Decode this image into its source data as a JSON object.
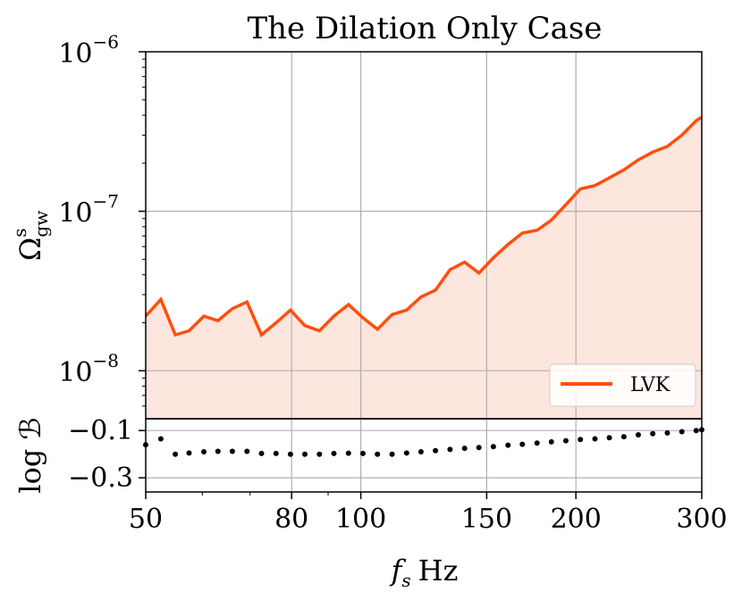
{
  "chart_data": [
    {
      "type": "area",
      "title": "The Dilation Only Case",
      "ylabel": "Ω^s_gw",
      "ylabel_base": "Ω",
      "ylabel_sup": "s",
      "ylabel_sub": "gw",
      "yscale": "log",
      "ylim": [
        5e-09,
        1e-06
      ],
      "xscale": "log",
      "xlim": [
        50,
        300
      ],
      "y_ticks": [
        {
          "value": 1e-06,
          "base": "10",
          "exp": "−6"
        },
        {
          "value": 1e-07,
          "base": "10",
          "exp": "−7"
        },
        {
          "value": 1e-08,
          "base": "10",
          "exp": "−8"
        }
      ],
      "grid": true,
      "legend": {
        "position": "lower-right",
        "entries": [
          "LVK"
        ]
      },
      "colors": {
        "line": "#ff4f0d",
        "fill": "#fde6de"
      },
      "series": [
        {
          "name": "LVK",
          "x": [
            50,
            52.5,
            55,
            57.5,
            60.3,
            63.1,
            66.1,
            69.3,
            72.6,
            76.1,
            79.7,
            83.5,
            87.5,
            91.7,
            96.1,
            100.7,
            105.5,
            110.6,
            115.9,
            121.4,
            127.2,
            133.3,
            139.7,
            146.3,
            153.3,
            160.7,
            168.3,
            176.4,
            184.8,
            193.6,
            202.9,
            212.6,
            222.7,
            233.4,
            244.5,
            256.2,
            268.5,
            281.3,
            294.7,
            300
          ],
          "values": [
            2.2e-08,
            2.8e-08,
            1.68e-08,
            1.78e-08,
            2.2e-08,
            2.06e-08,
            2.45e-08,
            2.7e-08,
            1.68e-08,
            2e-08,
            2.4e-08,
            1.92e-08,
            1.78e-08,
            2.2e-08,
            2.6e-08,
            2.15e-08,
            1.82e-08,
            2.25e-08,
            2.4e-08,
            2.9e-08,
            3.2e-08,
            4.3e-08,
            4.8e-08,
            4.1e-08,
            5.1e-08,
            6.2e-08,
            7.3e-08,
            7.6e-08,
            8.8e-08,
            1.1e-07,
            1.38e-07,
            1.45e-07,
            1.62e-07,
            1.82e-07,
            2.1e-07,
            2.35e-07,
            2.55e-07,
            3e-07,
            3.7e-07,
            3.9e-07
          ]
        }
      ]
    },
    {
      "type": "scatter",
      "ylabel": "log ℬ",
      "xlabel": "f_s Hz",
      "xlabel_main": "f",
      "xlabel_sub": "s",
      "xlabel_unit": "Hz",
      "xscale": "log",
      "xlim": [
        50,
        300
      ],
      "x_ticks": [
        50,
        80,
        100,
        150,
        200,
        300
      ],
      "ylim": [
        -0.36,
        -0.05
      ],
      "y_ticks": [
        {
          "value": -0.1,
          "label": "−0.1"
        },
        {
          "value": -0.3,
          "label": "−0.3"
        }
      ],
      "grid": true,
      "colors": {
        "marker": "#000000"
      },
      "series": [
        {
          "name": "log B",
          "x": [
            50,
            52.5,
            55,
            57.5,
            60.3,
            63.1,
            66.1,
            69.3,
            72.6,
            76.1,
            79.7,
            83.5,
            87.5,
            91.7,
            96.1,
            100.7,
            105.5,
            110.6,
            115.9,
            121.4,
            127.2,
            133.3,
            139.7,
            146.3,
            153.3,
            160.7,
            168.3,
            176.4,
            184.8,
            193.6,
            202.9,
            212.6,
            222.7,
            233.4,
            244.5,
            256.2,
            268.5,
            281.3,
            294.7,
            300
          ],
          "values": [
            -0.16,
            -0.135,
            -0.2,
            -0.195,
            -0.19,
            -0.188,
            -0.188,
            -0.188,
            -0.197,
            -0.197,
            -0.2,
            -0.2,
            -0.2,
            -0.197,
            -0.196,
            -0.197,
            -0.2,
            -0.2,
            -0.195,
            -0.19,
            -0.185,
            -0.18,
            -0.175,
            -0.172,
            -0.168,
            -0.162,
            -0.158,
            -0.153,
            -0.148,
            -0.143,
            -0.138,
            -0.135,
            -0.13,
            -0.126,
            -0.118,
            -0.113,
            -0.11,
            -0.105,
            -0.1,
            -0.097
          ]
        }
      ]
    }
  ]
}
